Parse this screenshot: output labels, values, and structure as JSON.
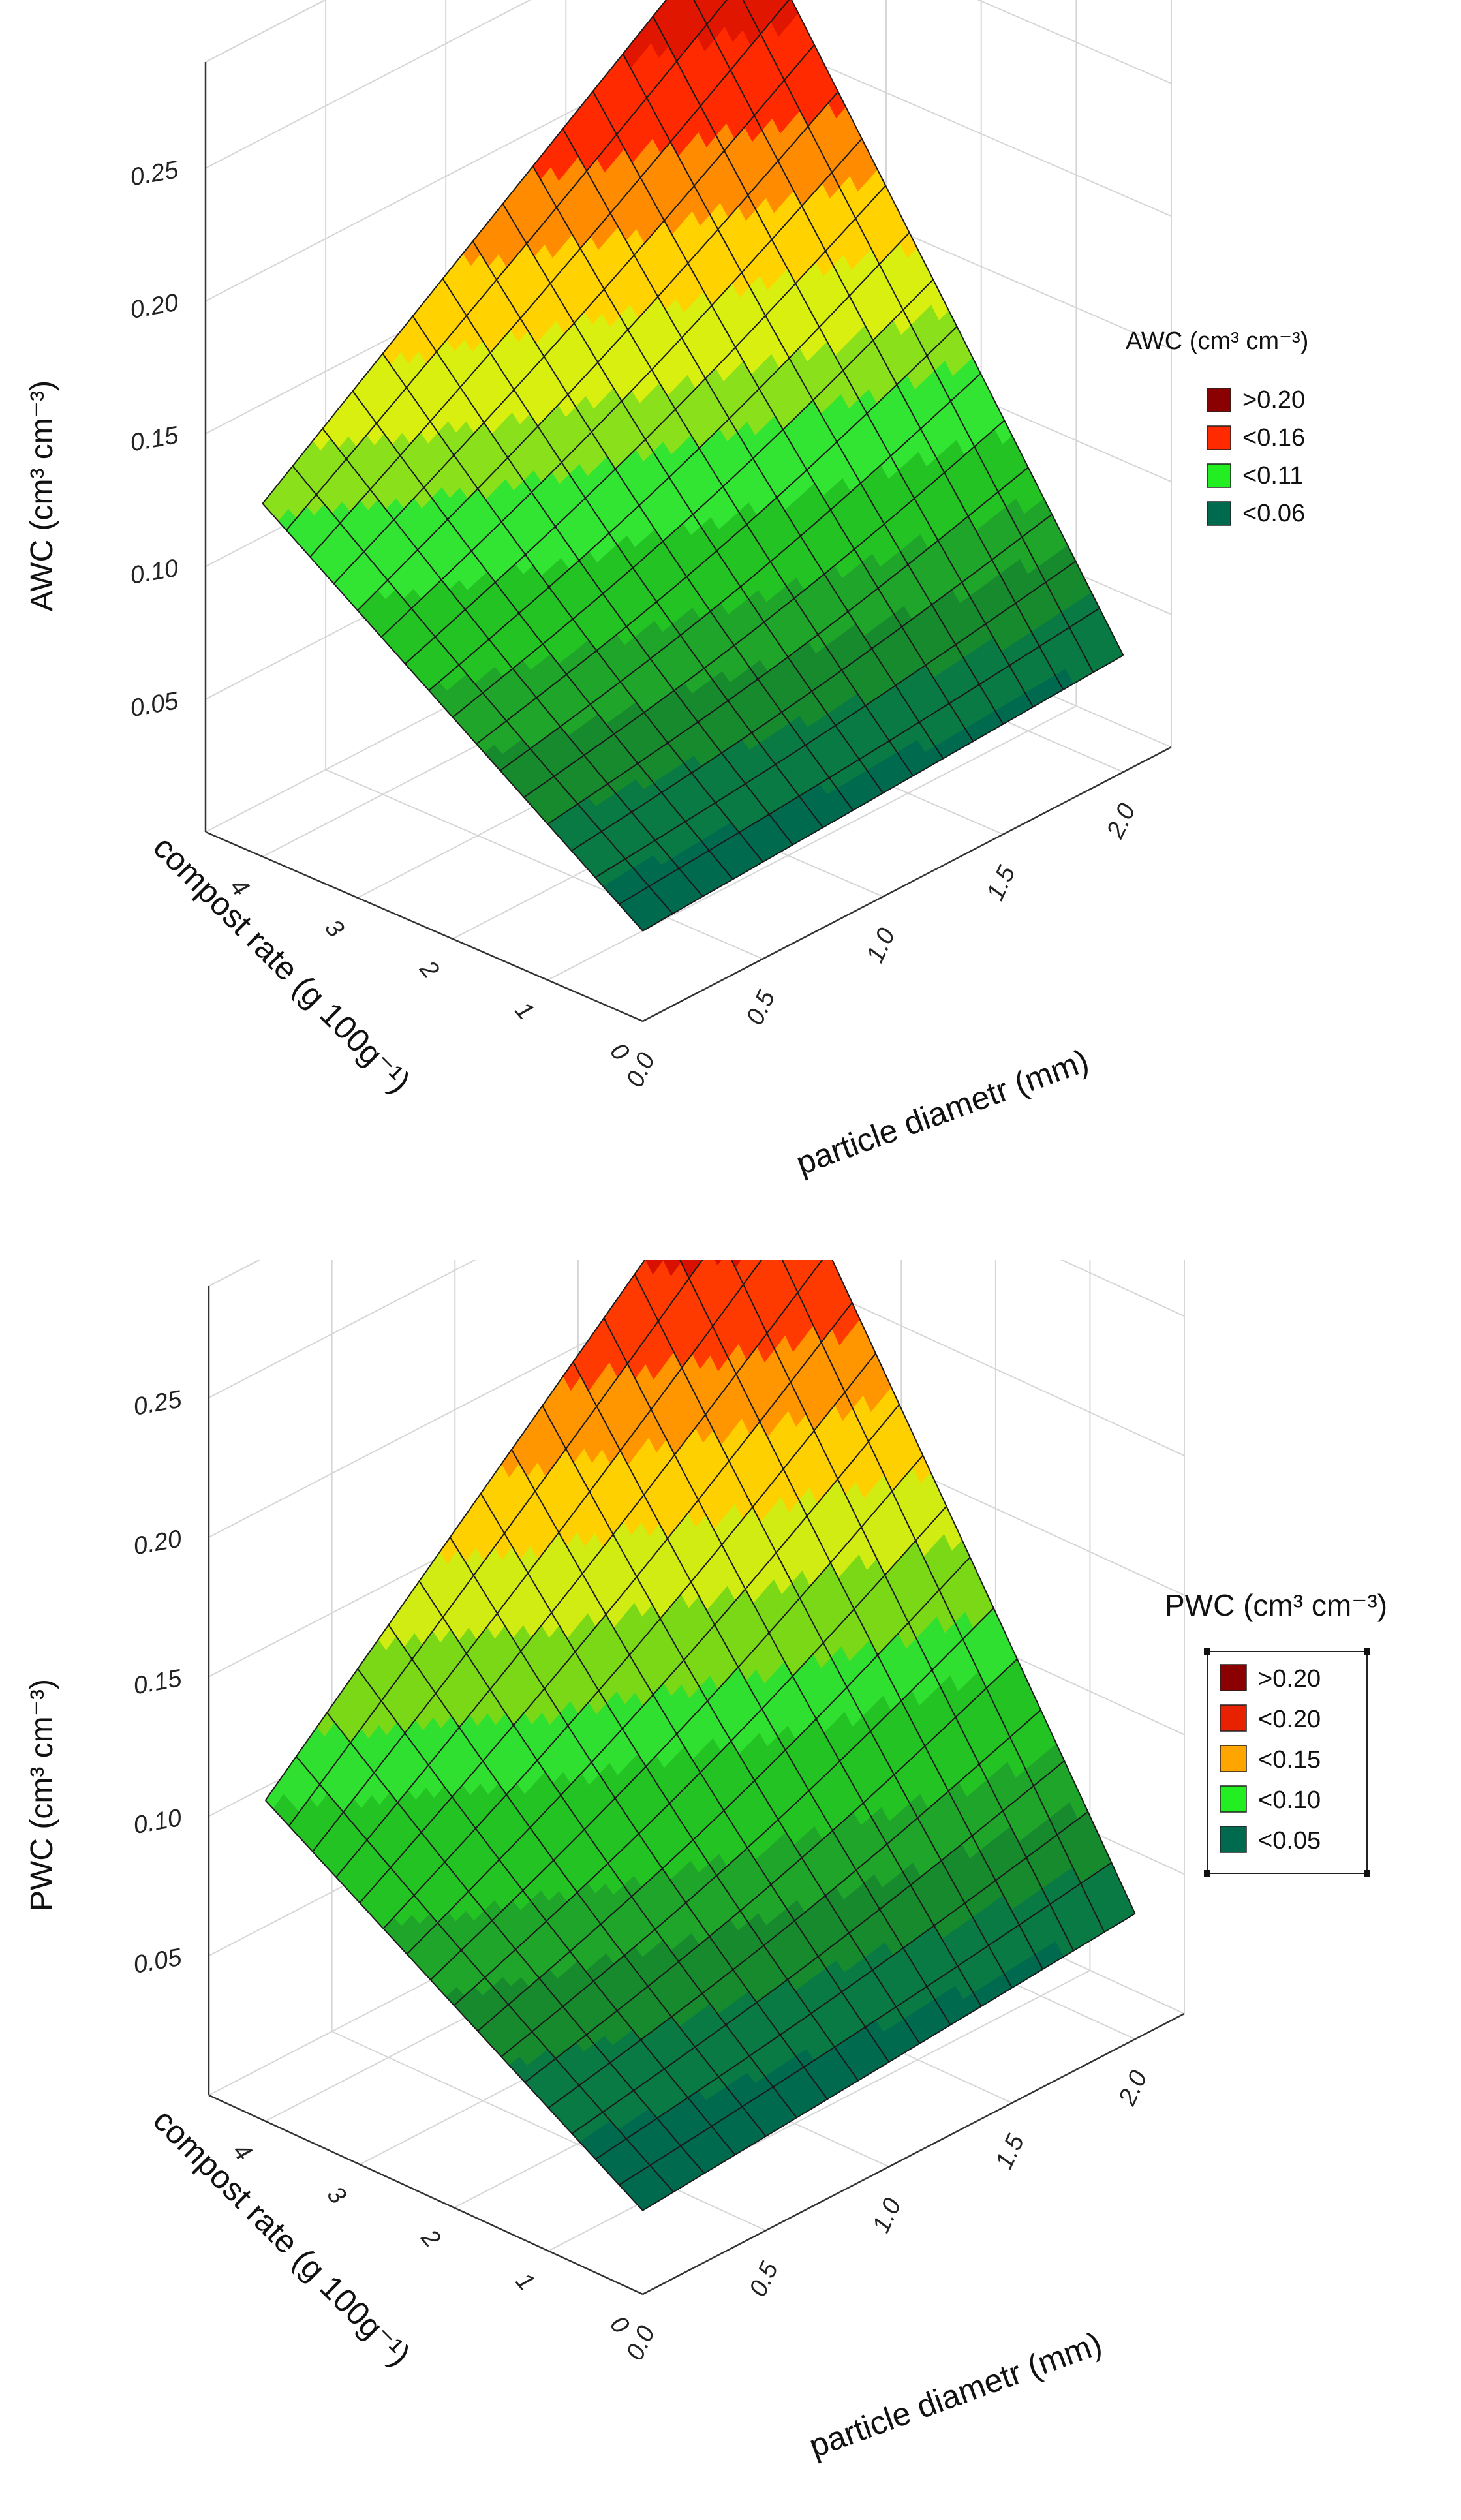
{
  "chart_data": [
    {
      "type": "surface3d",
      "title": "",
      "zlabel": "AWC (cm³ cm⁻³)",
      "xlabel": "particle diametr (mm)",
      "ylabel": "compost rate (g 100g⁻¹)",
      "x_ticks": [
        "0.0",
        "0.5",
        "1.0",
        "1.5",
        "2.0"
      ],
      "y_ticks": [
        "0",
        "1",
        "2",
        "3",
        "4"
      ],
      "z_ticks": [
        "0.05",
        "0.10",
        "0.15",
        "0.20",
        "0.25"
      ],
      "xlim": [
        0,
        2.2
      ],
      "ylim": [
        0,
        4.6
      ],
      "zlim": [
        0,
        0.29
      ],
      "corner_values": {
        "x0_y0": 0.034,
        "x2_y0": 0.044,
        "x0_y4": 0.133,
        "x2_y4": 0.265
      },
      "legend": {
        "title": "AWC (cm³ cm⁻³)",
        "placement": "right",
        "entries": [
          {
            "label": ">0.20",
            "color": "#8b0000"
          },
          {
            "label": "<0.16",
            "color": "#ff2a00"
          },
          {
            "label": "<0.11",
            "color": "#22ee22"
          },
          {
            "label": "<0.06",
            "color": "#006a4e"
          }
        ]
      }
    },
    {
      "type": "surface3d",
      "title": "",
      "zlabel": "PWC (cm³ cm⁻³)",
      "xlabel": "particle diametr (mm)",
      "ylabel": "compost rate (g 100g⁻¹)",
      "x_ticks": [
        "0.0",
        "0.5",
        "1.0",
        "1.5",
        "2.0"
      ],
      "y_ticks": [
        "0",
        "1",
        "2",
        "3",
        "4"
      ],
      "z_ticks": [
        "0.05",
        "0.10",
        "0.15",
        "0.20",
        "0.25"
      ],
      "xlim": [
        0,
        2.2
      ],
      "ylim": [
        0,
        4.6
      ],
      "zlim": [
        0,
        0.29
      ],
      "corner_values": {
        "x0_y0": 0.03,
        "x2_y0": 0.045,
        "x0_y4": 0.115,
        "x2_y4": 0.275
      },
      "legend": {
        "title": "PWC (cm³ cm⁻³)",
        "placement": "right",
        "entries": [
          {
            "label": ">0.20",
            "color": "#8b0000"
          },
          {
            "label": "<0.20",
            "color": "#e82200"
          },
          {
            "label": "<0.15",
            "color": "#ffa500"
          },
          {
            "label": "<0.10",
            "color": "#22ee22"
          },
          {
            "label": "<0.05",
            "color": "#006a4e"
          }
        ]
      }
    }
  ]
}
